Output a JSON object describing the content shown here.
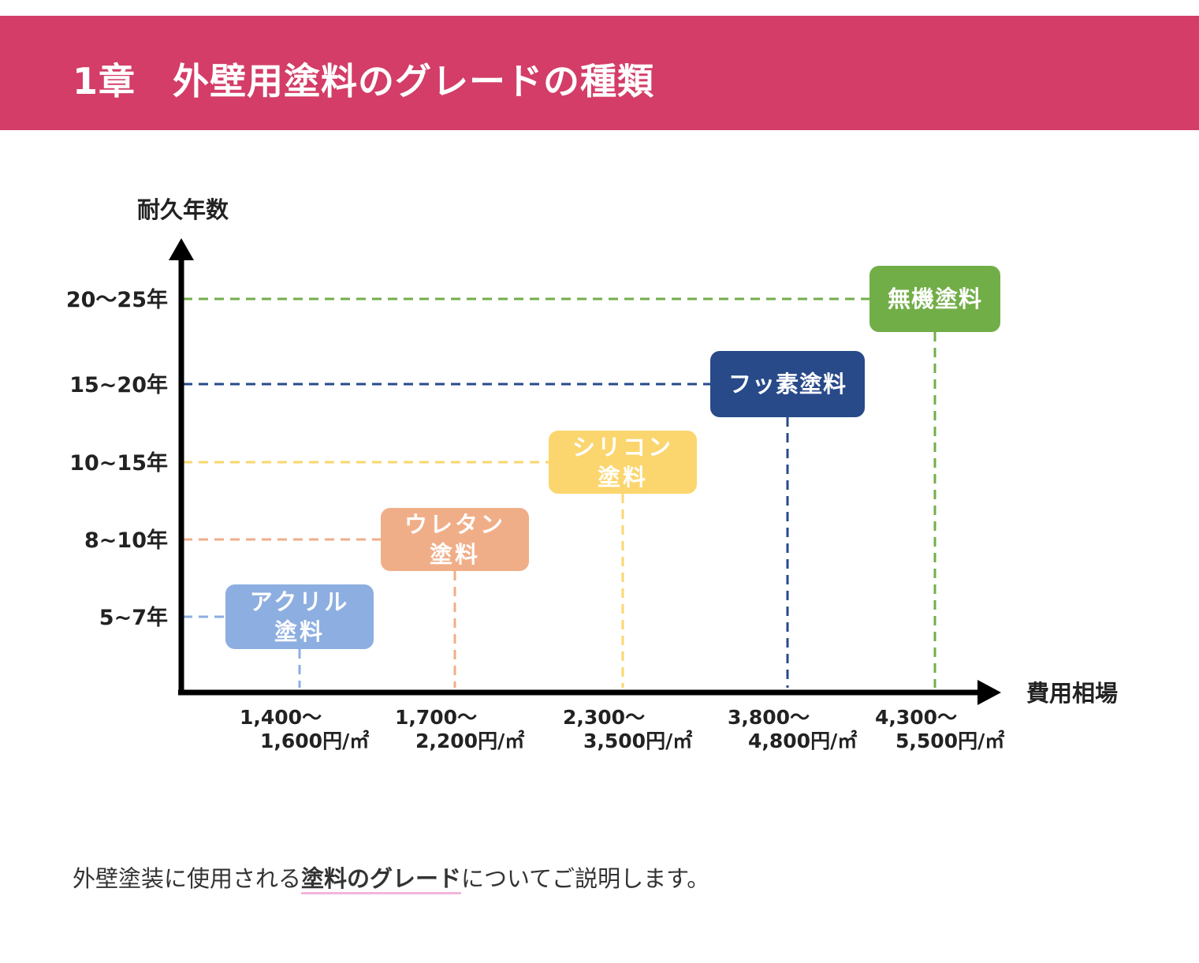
{
  "header": {
    "title": "1章　外壁用塗料のグレードの種類",
    "background_color": "#d33d67"
  },
  "chart_data": {
    "type": "scatter",
    "title": "",
    "xlabel": "費用相場",
    "ylabel": "耐久年数",
    "legend": "none",
    "grid": false,
    "y_ticks": [
      "5~7年",
      "8~10年",
      "10~15年",
      "15~20年",
      "20〜25年"
    ],
    "x_ticks": [
      [
        "1,400〜",
        "1,600円/㎡"
      ],
      [
        "1,700〜",
        "2,200円/㎡"
      ],
      [
        "2,300〜",
        "3,500円/㎡"
      ],
      [
        "3,800〜",
        "4,800円/㎡"
      ],
      [
        "4,300〜",
        "5,500円/㎡"
      ]
    ],
    "points": [
      {
        "label": [
          "アクリル",
          "塗料"
        ],
        "price_tick": 0,
        "durability_tick": 0,
        "color": "#8daee0"
      },
      {
        "label": [
          "ウレタン",
          "塗料"
        ],
        "price_tick": 1,
        "durability_tick": 1,
        "color": "#f0ae88"
      },
      {
        "label": [
          "シリコン",
          "塗料"
        ],
        "price_tick": 2,
        "durability_tick": 2,
        "color": "#fbd66e"
      },
      {
        "label": [
          "フッ素塗料"
        ],
        "price_tick": 3,
        "durability_tick": 3,
        "color": "#284a89"
      },
      {
        "label": [
          "無機塗料"
        ],
        "price_tick": 4,
        "durability_tick": 4,
        "color": "#72ae48"
      }
    ]
  },
  "intro": {
    "before": "外壁塗装に使用される",
    "emphasis": "塗料のグレード",
    "after": "についてご説明します。"
  }
}
